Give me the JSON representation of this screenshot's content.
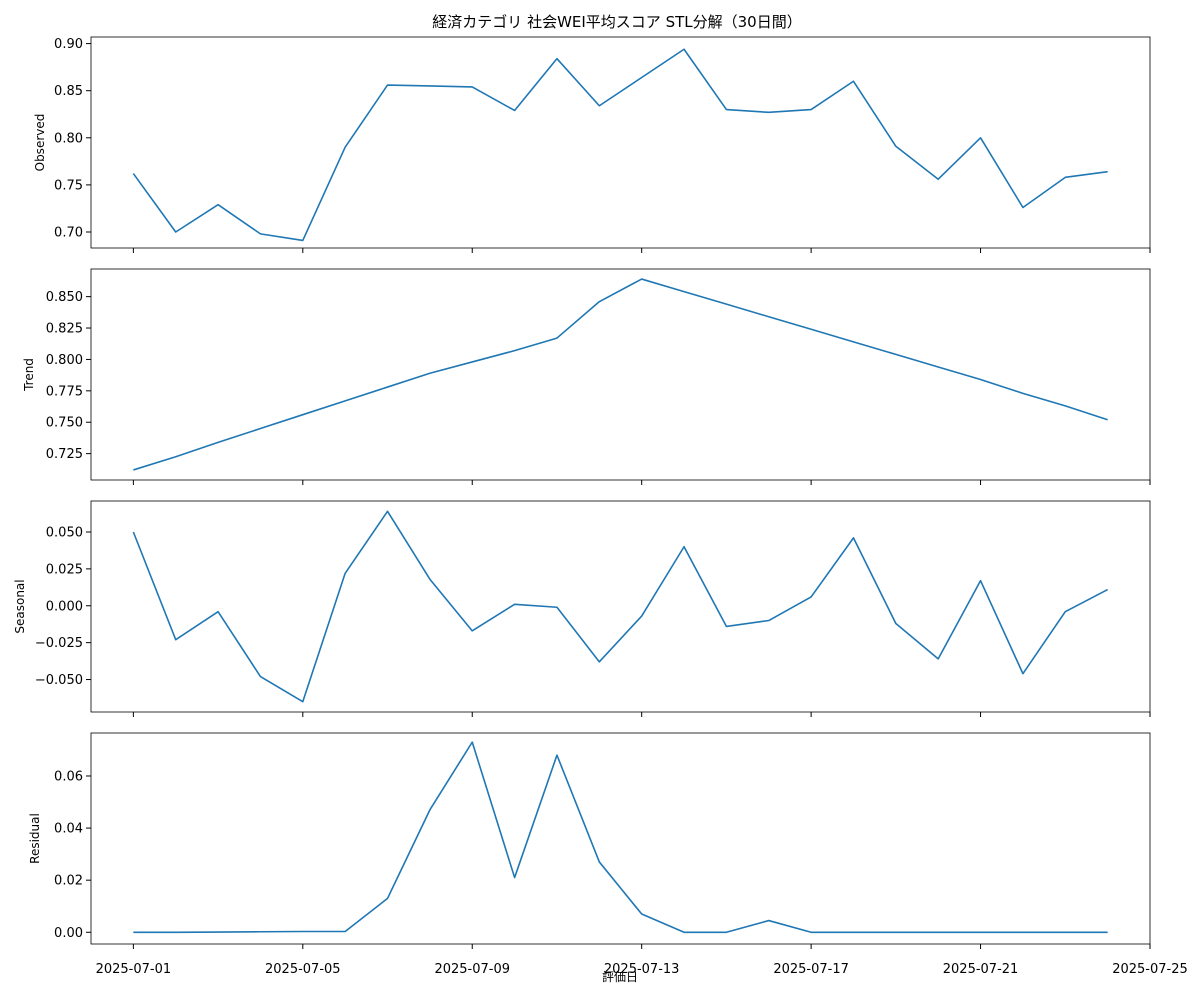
{
  "chart_data": {
    "type": "line",
    "title": "経済カテゴリ 社会WEI平均スコア STL分解（30日間）",
    "xlabel": "評価日",
    "x": [
      "2025-07-01",
      "2025-07-02",
      "2025-07-03",
      "2025-07-04",
      "2025-07-05",
      "2025-07-06",
      "2025-07-07",
      "2025-07-08",
      "2025-07-09",
      "2025-07-10",
      "2025-07-11",
      "2025-07-12",
      "2025-07-13",
      "2025-07-14",
      "2025-07-15",
      "2025-07-16",
      "2025-07-17",
      "2025-07-18",
      "2025-07-19",
      "2025-07-20",
      "2025-07-21",
      "2025-07-22",
      "2025-07-23",
      "2025-07-24"
    ],
    "x_ticks": [
      "2025-07-01",
      "2025-07-05",
      "2025-07-09",
      "2025-07-13",
      "2025-07-17",
      "2025-07-21",
      "2025-07-25"
    ],
    "x_range": [
      "2025-06-30",
      "2025-07-25"
    ],
    "line_color": "#1f77b4",
    "panels": [
      {
        "ylabel": "Observed",
        "ylim": [
          0.683,
          0.907
        ],
        "y_ticks": [
          "0.70",
          "0.75",
          "0.80",
          "0.85",
          "0.90"
        ],
        "values": [
          0.762,
          0.7,
          0.729,
          0.698,
          0.691,
          0.79,
          0.856,
          0.855,
          0.854,
          0.829,
          0.884,
          0.834,
          0.864,
          0.894,
          0.83,
          0.827,
          0.83,
          0.86,
          0.791,
          0.756,
          0.8,
          0.726,
          0.758,
          0.764
        ]
      },
      {
        "ylabel": "Trend",
        "ylim": [
          0.704,
          0.872
        ],
        "y_ticks": [
          "0.725",
          "0.750",
          "0.775",
          "0.800",
          "0.825",
          "0.850"
        ],
        "values": [
          0.712,
          0.7225,
          0.734,
          0.745,
          0.756,
          0.767,
          0.778,
          0.789,
          0.798,
          0.807,
          0.817,
          0.846,
          0.864,
          0.854,
          0.844,
          0.834,
          0.824,
          0.814,
          0.804,
          0.794,
          0.784,
          0.773,
          0.763,
          0.752
        ]
      },
      {
        "ylabel": "Seasonal",
        "ylim": [
          -0.072,
          0.071
        ],
        "y_ticks": [
          "−0.050",
          "−0.025",
          "0.000",
          "0.025",
          "0.050"
        ],
        "values": [
          0.05,
          -0.023,
          -0.004,
          -0.048,
          -0.065,
          0.022,
          0.064,
          0.018,
          -0.017,
          0.001,
          -0.001,
          -0.038,
          -0.007,
          0.04,
          -0.014,
          -0.01,
          0.006,
          0.046,
          -0.012,
          -0.036,
          0.017,
          -0.046,
          -0.004,
          0.011
        ]
      },
      {
        "ylabel": "Residual",
        "ylim": [
          -0.0045,
          0.0765
        ],
        "y_ticks": [
          "0.00",
          "0.02",
          "0.04",
          "0.06"
        ],
        "values": [
          0.0,
          0.0,
          0.0001,
          0.0002,
          0.0003,
          0.0003,
          0.013,
          0.047,
          0.073,
          0.021,
          0.068,
          0.027,
          0.007,
          0.0,
          0.0,
          0.0045,
          0.0,
          0.0,
          0.0,
          0.0,
          0.0,
          0.0,
          0.0,
          0.0
        ]
      }
    ]
  }
}
